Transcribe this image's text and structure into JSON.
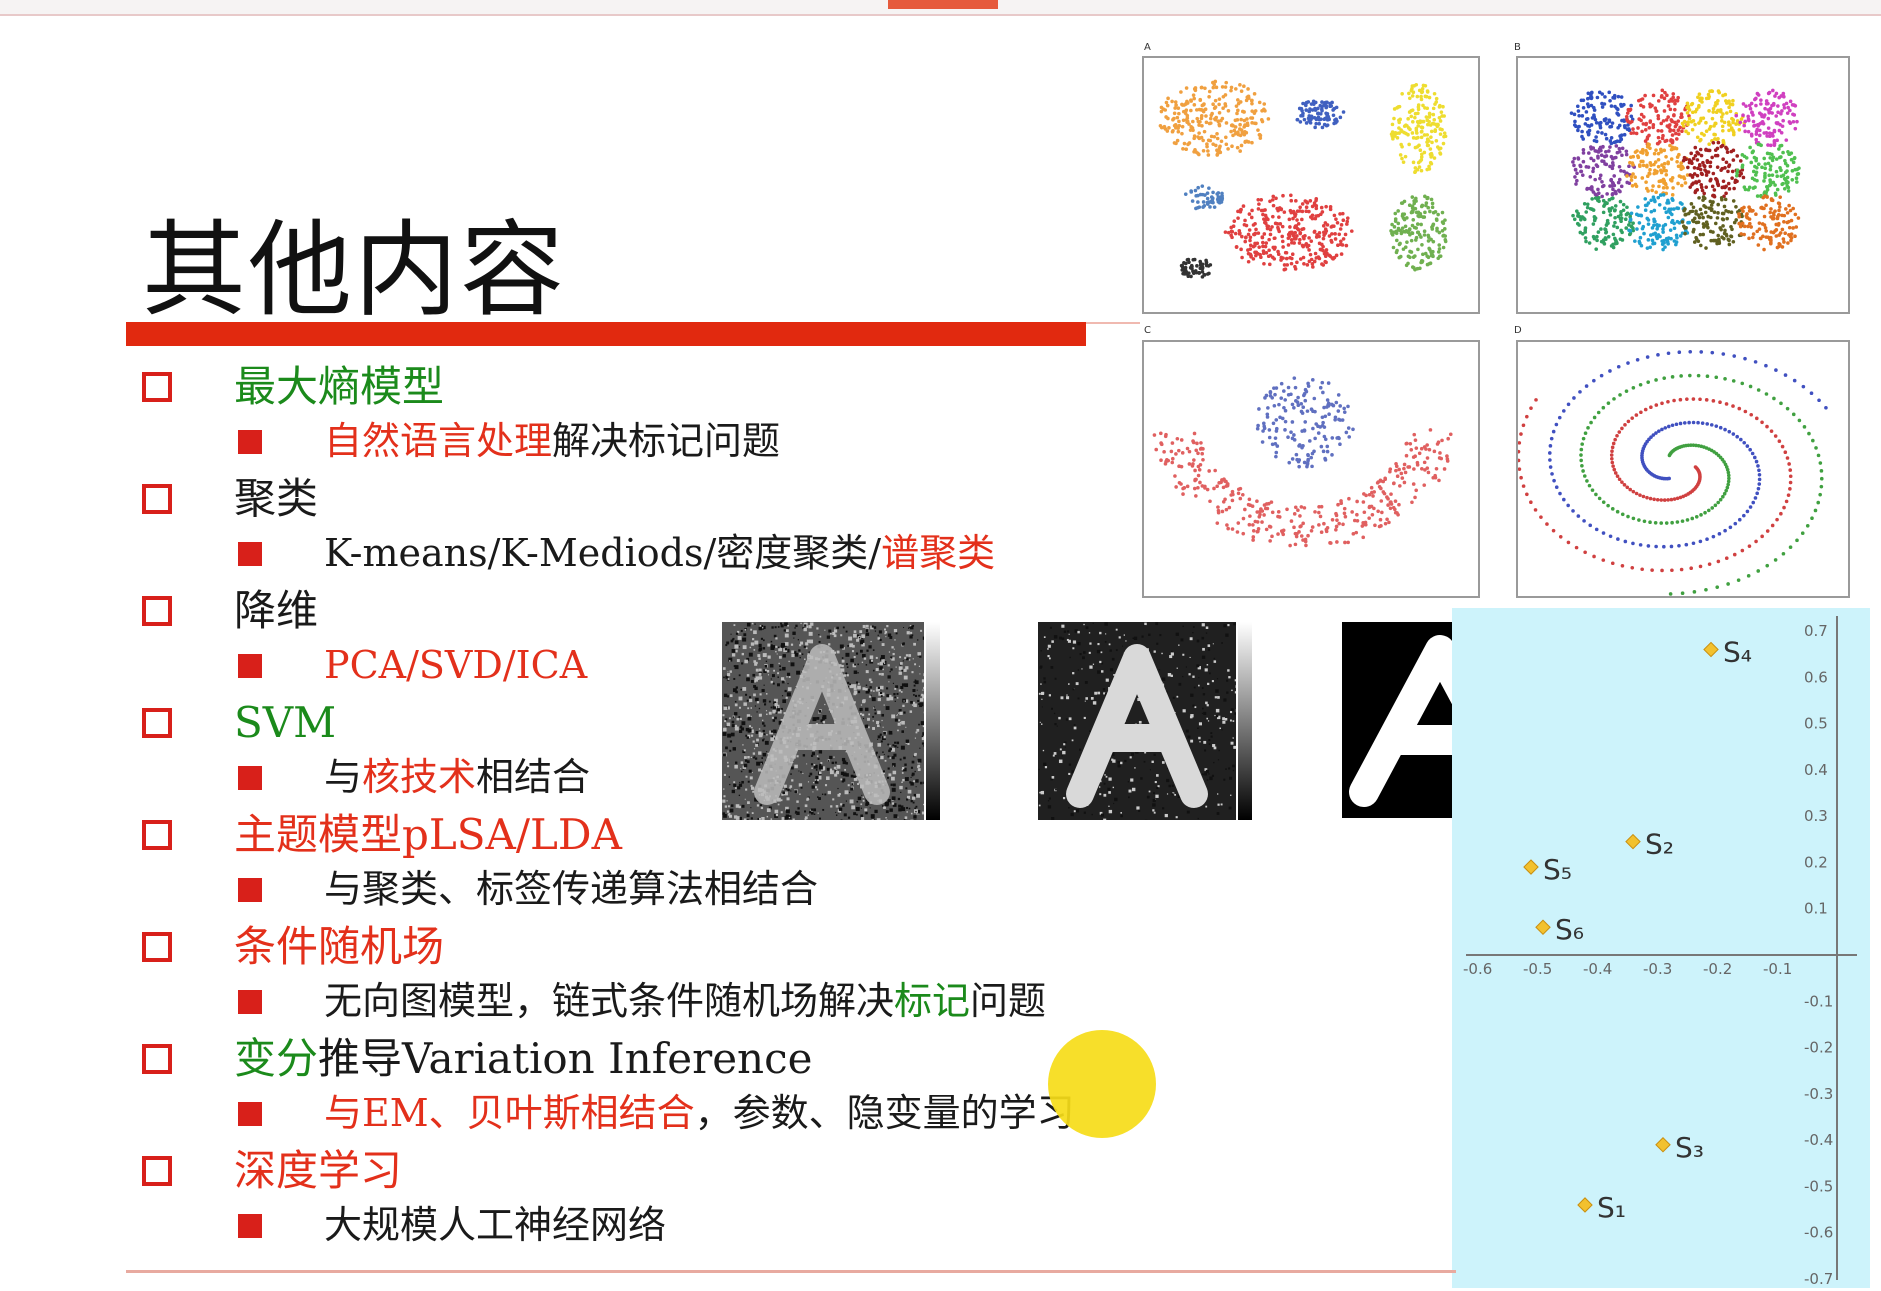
{
  "slide": {
    "title": "其他内容",
    "items": [
      {
        "heading": [
          {
            "text": "最大熵模型",
            "color": "g"
          }
        ],
        "sub": [
          {
            "text": "自然语言处理",
            "color": "r"
          },
          {
            "text": "解决标记问题",
            "color": "k"
          }
        ]
      },
      {
        "heading": [
          {
            "text": "聚类",
            "color": "k"
          }
        ],
        "sub": [
          {
            "text": "K-means/K-Mediods/密度聚类/",
            "color": "k"
          },
          {
            "text": "谱聚类",
            "color": "r"
          }
        ]
      },
      {
        "heading": [
          {
            "text": "降维",
            "color": "k"
          }
        ],
        "sub": [
          {
            "text": "PCA/SVD/ICA",
            "color": "r"
          }
        ]
      },
      {
        "heading": [
          {
            "text": "SVM",
            "color": "g"
          }
        ],
        "sub": [
          {
            "text": "与",
            "color": "k"
          },
          {
            "text": "核技术",
            "color": "r"
          },
          {
            "text": "相结合",
            "color": "k"
          }
        ]
      },
      {
        "heading": [
          {
            "text": "主题模型pLSA/LDA",
            "color": "r"
          }
        ],
        "sub": [
          {
            "text": "与聚类、标签传递算法相结合",
            "color": "k"
          }
        ]
      },
      {
        "heading": [
          {
            "text": "条件随机场",
            "color": "r"
          }
        ],
        "sub": [
          {
            "text": "无向图模型，链式条件随机场解决",
            "color": "k"
          },
          {
            "text": "标记",
            "color": "g"
          },
          {
            "text": "问题",
            "color": "k"
          }
        ]
      },
      {
        "heading": [
          {
            "text": "变分",
            "color": "g"
          },
          {
            "text": "推导Variation Inference",
            "color": "k"
          }
        ],
        "sub": [
          {
            "text": "与EM、贝叶斯相结合",
            "color": "r"
          },
          {
            "text": "，参数、隐变量的学习",
            "color": "k"
          }
        ]
      },
      {
        "heading": [
          {
            "text": "深度学习",
            "color": "r"
          }
        ],
        "sub": [
          {
            "text": "大规模人工神经网络",
            "color": "k"
          }
        ]
      }
    ]
  },
  "cluster_panels": {
    "labels": [
      "A",
      "B",
      "C",
      "D"
    ]
  },
  "letter_images": {
    "letter": "A",
    "count": 3
  },
  "colors": {
    "accent_red": "#e1290f",
    "green": "#1b8a1b",
    "scatter_bg": "#cdf3fb",
    "point": "#f2c12e"
  },
  "chart_data": {
    "type": "scatter",
    "title": "",
    "xlabel": "",
    "ylabel": "",
    "xlim": [
      -0.6,
      0.0
    ],
    "ylim": [
      -0.7,
      0.7
    ],
    "x_ticks": [
      "-0.6",
      "-0.5",
      "-0.4",
      "-0.3",
      "-0.2",
      "-0.1"
    ],
    "y_ticks": [
      "0.7",
      "0.6",
      "0.5",
      "0.4",
      "0.3",
      "0.2",
      "0.1",
      "-0.1",
      "-0.2",
      "-0.3",
      "-0.4",
      "-0.5",
      "-0.6",
      "-0.7"
    ],
    "points": [
      {
        "label": "S₄",
        "x": -0.21,
        "y": 0.66
      },
      {
        "label": "S₂",
        "x": -0.34,
        "y": 0.245
      },
      {
        "label": "S₅",
        "x": -0.51,
        "y": 0.19
      },
      {
        "label": "S₆",
        "x": -0.49,
        "y": 0.06
      },
      {
        "label": "S₃",
        "x": -0.29,
        "y": -0.41
      },
      {
        "label": "S₁",
        "x": -0.42,
        "y": -0.54
      }
    ]
  }
}
